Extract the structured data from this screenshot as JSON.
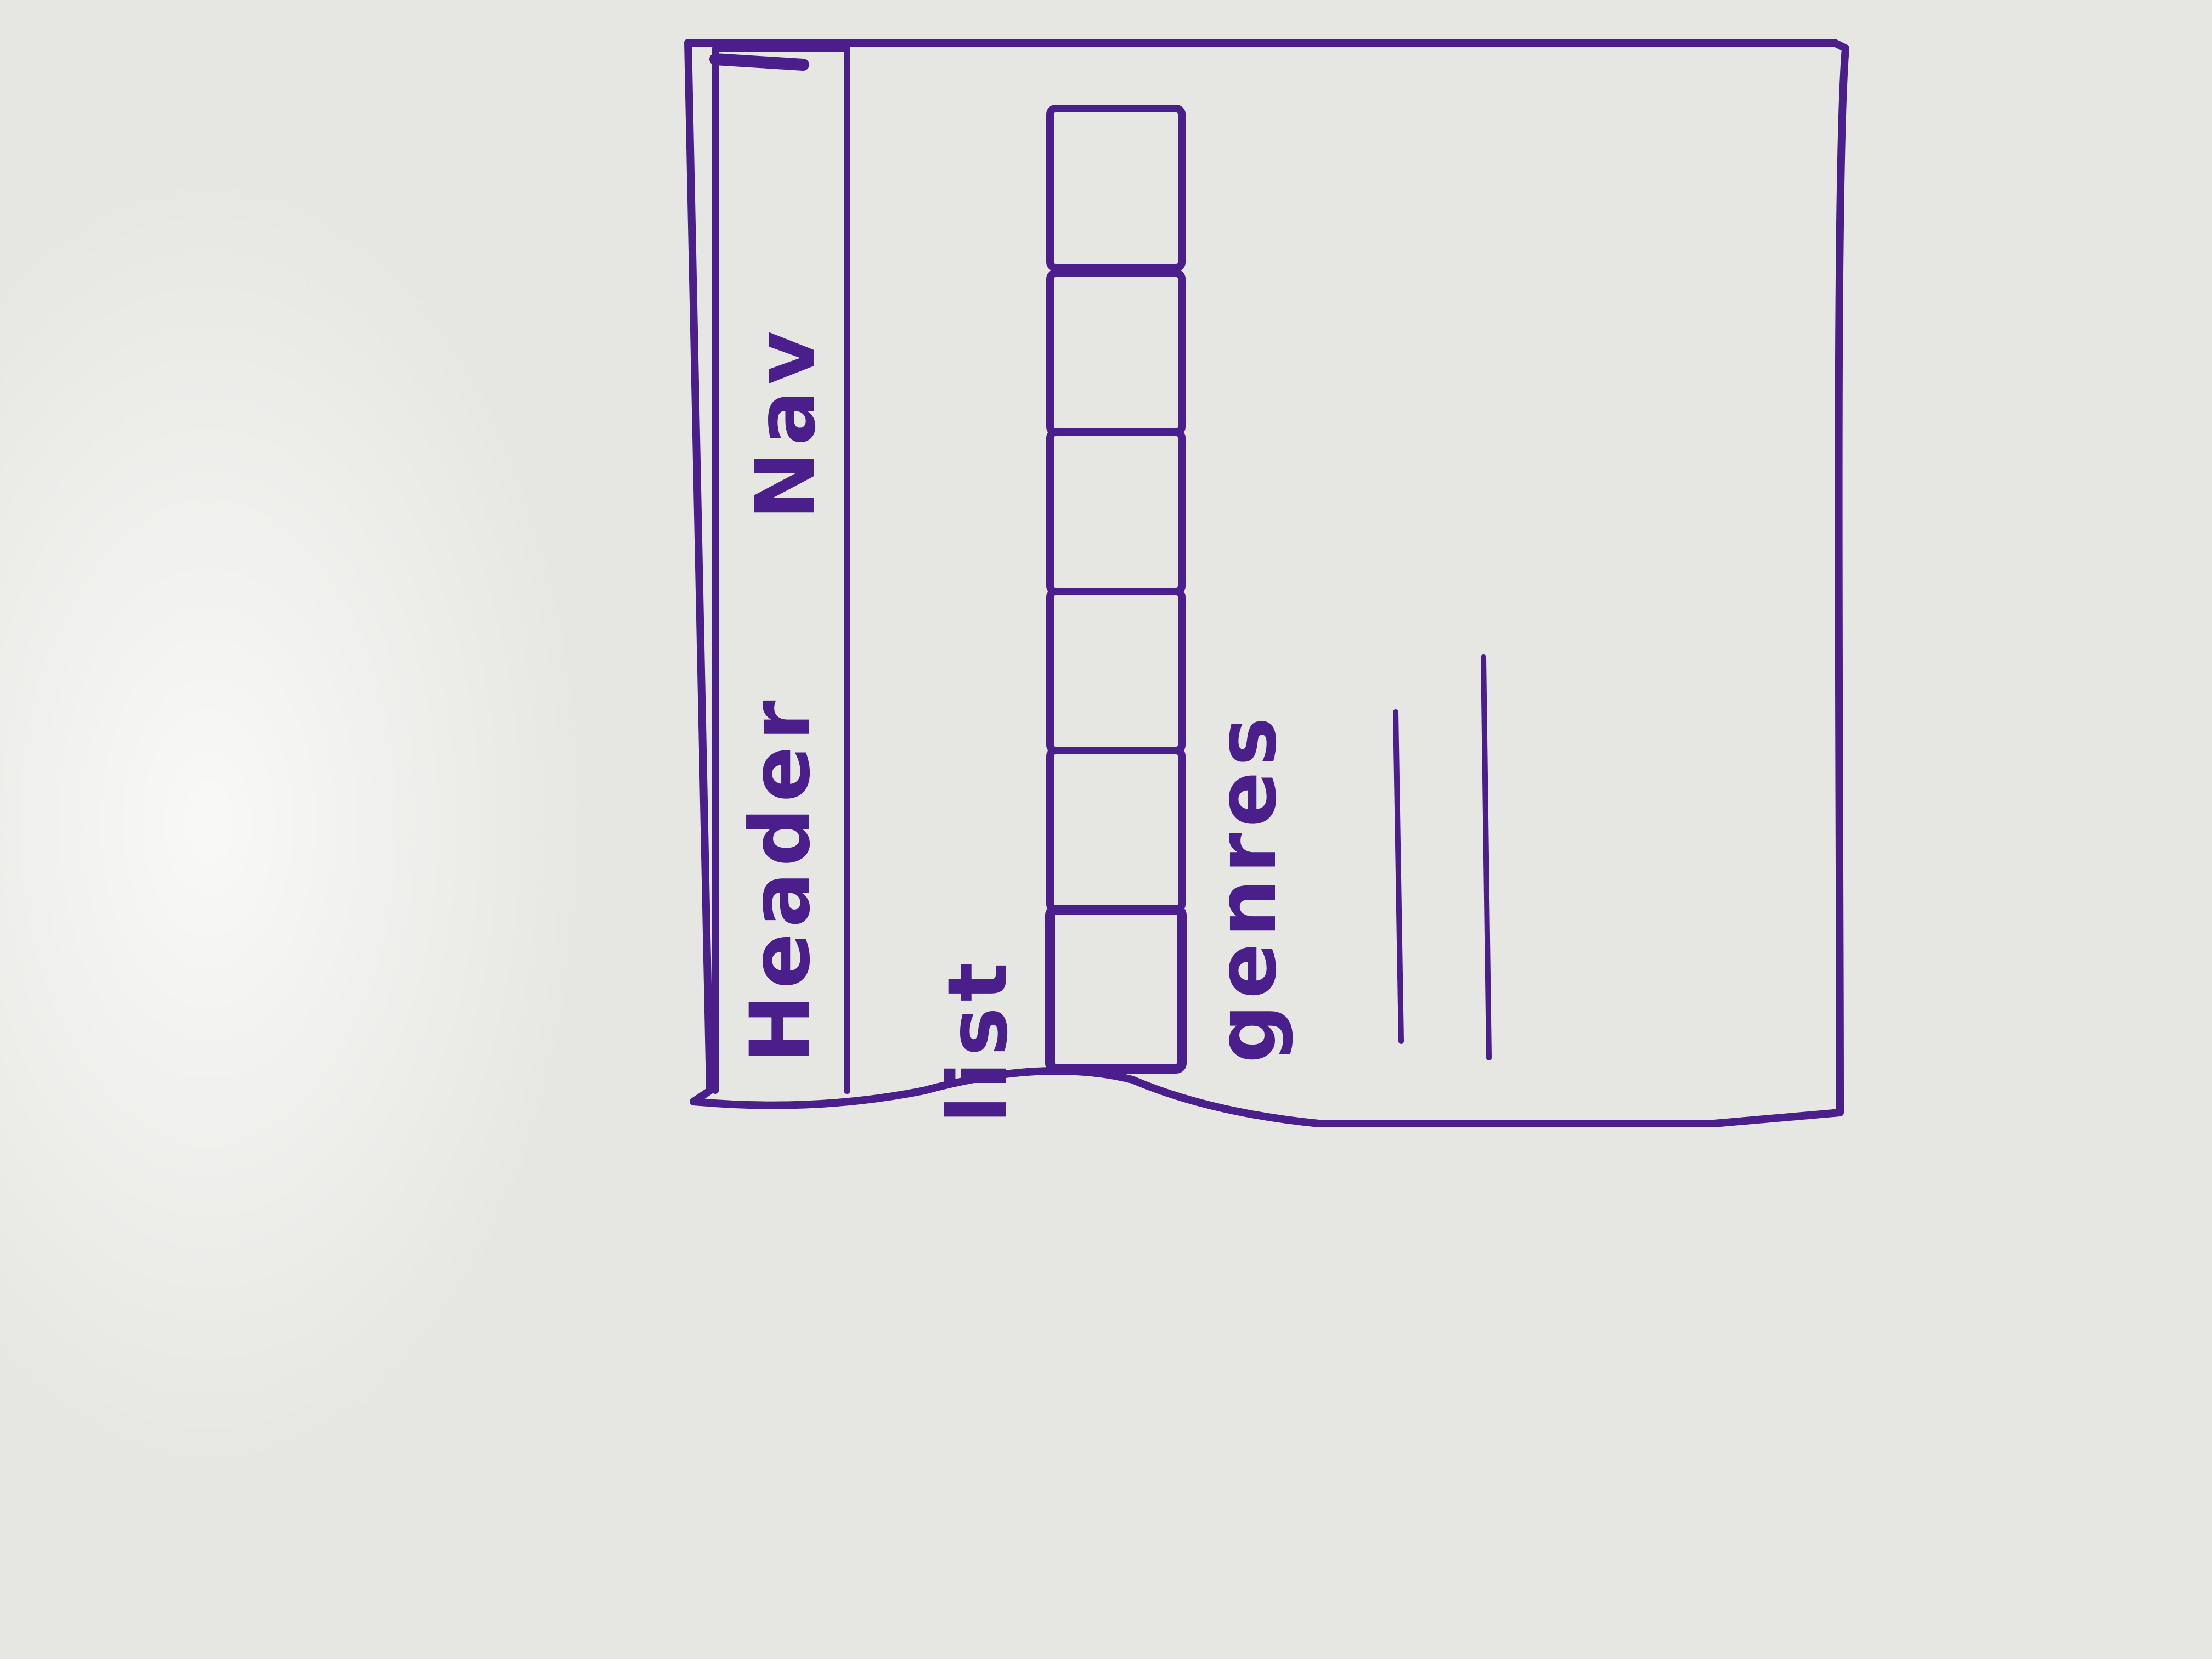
{
  "colors": {
    "whiteboard": "#e6e6e2",
    "marker": "#4a1f8c"
  },
  "labels": {
    "header": "Header",
    "nav": "Nav",
    "list": "list",
    "genres": "genres"
  },
  "list_items": 6,
  "genre_lines": 2
}
